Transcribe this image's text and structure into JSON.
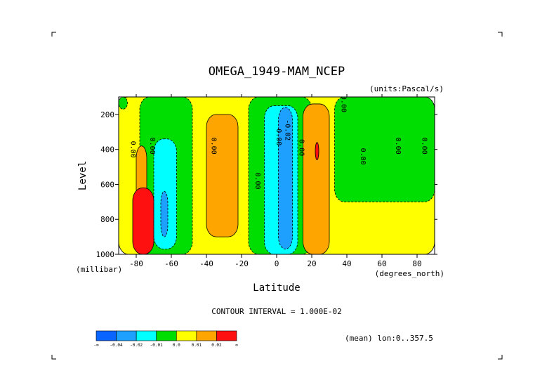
{
  "chart_data": {
    "type": "heatmap",
    "title": "OMEGA_1949-MAM_NCEP",
    "units": "(units:Pascal/s)",
    "xlabel": "Latitude",
    "ylabel": "Level",
    "x_unit": "(degrees_north)",
    "y_unit": "(millibar)",
    "xlim": [
      -90,
      90
    ],
    "ylim": [
      1000,
      100
    ],
    "x_ticks": [
      -80,
      -60,
      -40,
      -20,
      0,
      20,
      40,
      60,
      80
    ],
    "y_ticks": [
      200,
      400,
      600,
      800,
      1000
    ],
    "contour_interval": "CONTOUR INTERVAL = 1.000E-02",
    "mean_info": "(mean) lon:0..357.5",
    "colorbar": {
      "labels": [
        "-∞",
        "-0.04",
        "-0.02",
        "-0.01",
        "0.0",
        "0.01",
        "0.02",
        "∞"
      ],
      "colors": [
        "#0a64ff",
        "#1ea0ff",
        "#00ffff",
        "#00dd00",
        "#ffff00",
        "#ffa500",
        "#ff1010"
      ]
    },
    "contour_labels": [
      {
        "text": "0.00",
        "lat": -83,
        "lev": 400
      },
      {
        "text": "0.00",
        "lat": -72,
        "lev": 380
      },
      {
        "text": "0.00",
        "lat": -37,
        "lev": 380
      },
      {
        "text": "0.00",
        "lat": -12,
        "lev": 580
      },
      {
        "text": "0.00",
        "lat": 0,
        "lev": 330
      },
      {
        "text": "-0.02",
        "lat": 5,
        "lev": 290
      },
      {
        "text": "0.00",
        "lat": 13,
        "lev": 390
      },
      {
        "text": "0.00",
        "lat": 37,
        "lev": 140
      },
      {
        "text": "0.00",
        "lat": 48,
        "lev": 440
      },
      {
        "text": "0.00",
        "lat": 68,
        "lev": 380
      },
      {
        "text": "0.00",
        "lat": 83,
        "lev": 380
      }
    ],
    "regions": [
      {
        "value_class": "0.00 to 0.01",
        "lat_range": [
          -90,
          90
        ],
        "lev_range": [
          100,
          1000
        ]
      },
      {
        "value_class": "-0.01 to 0.00",
        "lat_range": [
          -90,
          -85
        ],
        "lev_range": [
          100,
          170
        ]
      },
      {
        "value_class": "-0.01 to 0.00",
        "lat_range": [
          -78,
          -48
        ],
        "lev_range": [
          100,
          1000
        ]
      },
      {
        "value_class": "-0.02 to -0.01",
        "lat_range": [
          -70,
          -57
        ],
        "lev_range": [
          340,
          970
        ]
      },
      {
        "value_class": "-0.04 to -0.02",
        "lat_range": [
          -66,
          -62
        ],
        "lev_range": [
          640,
          900
        ]
      },
      {
        "value_class": "0.01 to 0.02",
        "lat_range": [
          -80,
          -74
        ],
        "lev_range": [
          380,
          700
        ]
      },
      {
        "value_class": "> 0.02",
        "lat_range": [
          -82,
          -70
        ],
        "lev_range": [
          620,
          1000
        ]
      },
      {
        "value_class": "0.01 to 0.02",
        "lat_range": [
          -40,
          -22
        ],
        "lev_range": [
          200,
          900
        ]
      },
      {
        "value_class": "-0.01 to 0.00",
        "lat_range": [
          -16,
          20
        ],
        "lev_range": [
          100,
          1000
        ]
      },
      {
        "value_class": "-0.02 to -0.01",
        "lat_range": [
          -7,
          12
        ],
        "lev_range": [
          150,
          1000
        ]
      },
      {
        "value_class": "-0.04 to -0.02",
        "lat_range": [
          1,
          9
        ],
        "lev_range": [
          160,
          970
        ]
      },
      {
        "value_class": "0.01 to 0.02",
        "lat_range": [
          15,
          30
        ],
        "lev_range": [
          140,
          1000
        ]
      },
      {
        "value_class": "> 0.02",
        "lat_range": [
          22,
          24
        ],
        "lev_range": [
          360,
          460
        ]
      },
      {
        "value_class": "-0.01 to 0.00",
        "lat_range": [
          33,
          90
        ],
        "lev_range": [
          100,
          700
        ]
      }
    ]
  }
}
